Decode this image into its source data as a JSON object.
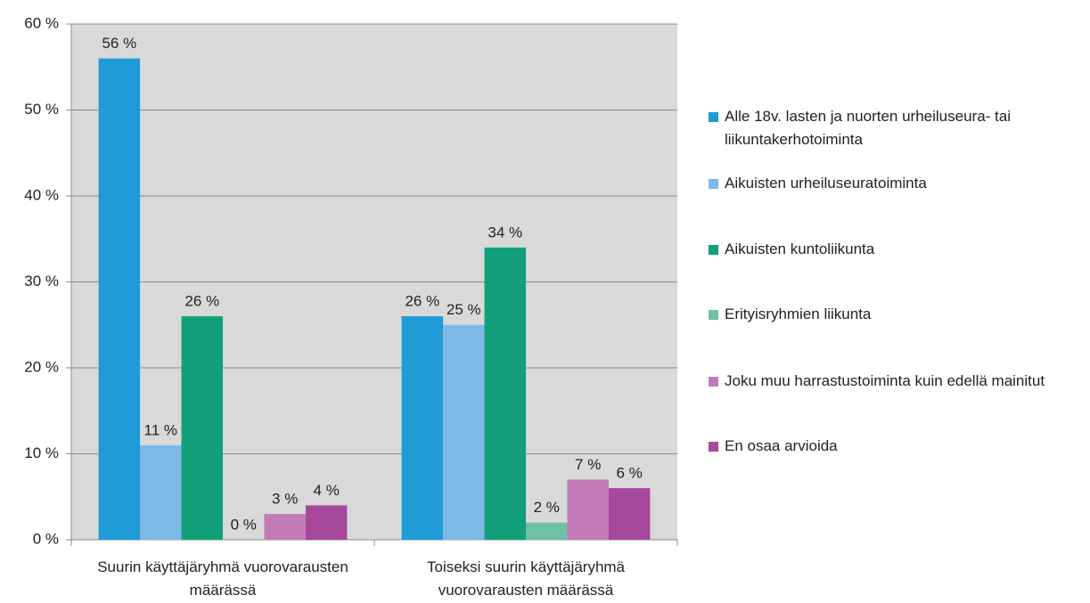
{
  "chart_data": {
    "type": "bar",
    "categories": [
      "Suurin käyttäjäryhmä vuorovarausten määrässä",
      "Toiseksi suurin käyttäjäryhmä vuorovarausten määrässä"
    ],
    "series": [
      {
        "name": "Alle 18v. lasten ja nuorten urheiluseura- tai liikuntakerhotoiminta",
        "color": "#1f9bd7",
        "values": [
          56,
          26
        ],
        "value_labels": [
          "56 %",
          "26 %"
        ]
      },
      {
        "name": "Aikuisten urheiluseuratoiminta",
        "color": "#7db9e6",
        "values": [
          11,
          25
        ],
        "value_labels": [
          "11 %",
          "25 %"
        ]
      },
      {
        "name": "Aikuisten kuntoliikunta",
        "color": "#12a07a",
        "values": [
          26,
          34
        ],
        "value_labels": [
          "26 %",
          "34 %"
        ]
      },
      {
        "name": "Erityisryhmien liikunta",
        "color": "#6fc1a5",
        "values": [
          0,
          2
        ],
        "value_labels": [
          "0 %",
          "2 %"
        ]
      },
      {
        "name": "Joku muu harrastustoiminta kuin edellä mainitut",
        "color": "#c27bb7",
        "values": [
          3,
          7
        ],
        "value_labels": [
          "3 %",
          "7 %"
        ]
      },
      {
        "name": "En osaa arvioida",
        "color": "#a6489b",
        "values": [
          4,
          6
        ],
        "value_labels": [
          "4 %",
          "6 %"
        ]
      }
    ],
    "ylim": [
      0,
      60
    ],
    "yticks": [
      {
        "value": 0,
        "label": "0 %"
      },
      {
        "value": 10,
        "label": "10 %"
      },
      {
        "value": 20,
        "label": "20 %"
      },
      {
        "value": 30,
        "label": "30 %"
      },
      {
        "value": 40,
        "label": "40 %"
      },
      {
        "value": 50,
        "label": "50 %"
      },
      {
        "value": 60,
        "label": "60 %"
      }
    ],
    "grid": true,
    "legend": "right"
  }
}
